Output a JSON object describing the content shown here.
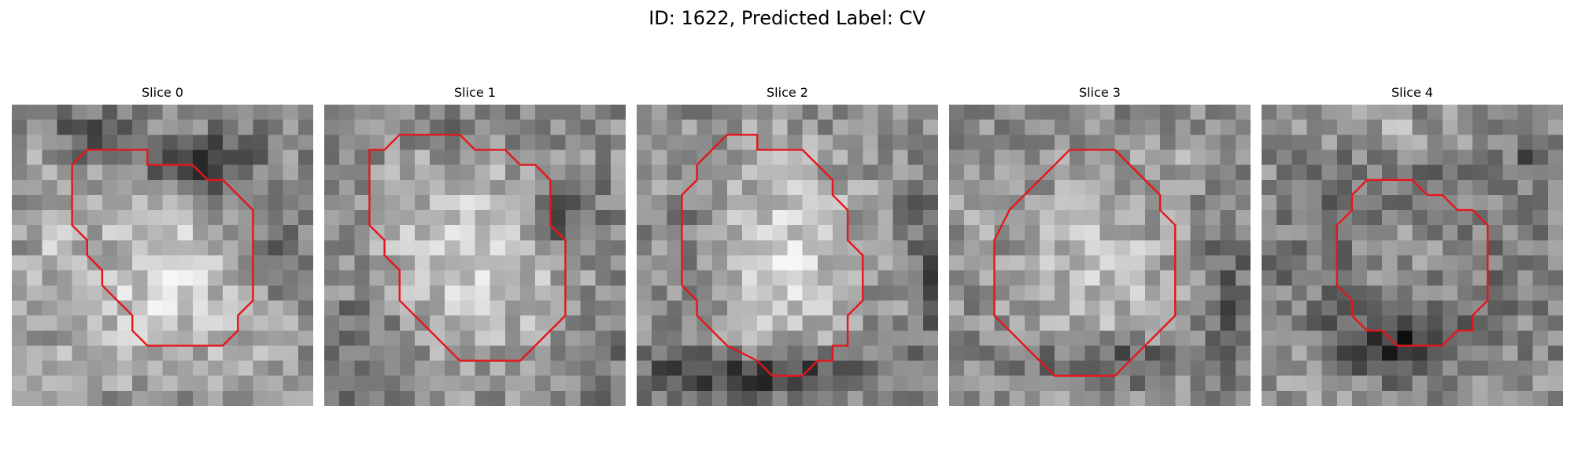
{
  "figure": {
    "title": "ID: 1622, Predicted Label: CV"
  },
  "slices": [
    {
      "label": "Slice 0",
      "seed": 11,
      "blobs": [
        [
          0.5,
          0.58,
          0.27,
          0.28,
          1.0
        ],
        [
          0.63,
          0.2,
          0.18,
          0.1,
          -1.25
        ],
        [
          0.25,
          0.1,
          0.14,
          0.08,
          -0.8
        ],
        [
          0.12,
          0.4,
          0.1,
          0.3,
          0.5
        ],
        [
          0.85,
          0.5,
          0.1,
          0.12,
          -0.7
        ],
        [
          0.3,
          0.85,
          0.25,
          0.12,
          0.3
        ],
        [
          0.85,
          0.8,
          0.12,
          0.15,
          0.4
        ]
      ],
      "contour": [
        [
          9,
          4
        ],
        [
          12,
          4
        ],
        [
          13,
          5
        ],
        [
          14,
          5
        ],
        [
          16,
          7
        ],
        [
          16,
          13
        ],
        [
          15,
          14
        ],
        [
          15,
          15
        ],
        [
          14,
          16
        ],
        [
          9,
          16
        ],
        [
          8,
          15
        ],
        [
          8,
          14
        ],
        [
          6,
          12
        ],
        [
          6,
          11
        ],
        [
          5,
          10
        ],
        [
          5,
          9
        ],
        [
          4,
          8
        ],
        [
          4,
          4
        ],
        [
          5,
          3
        ],
        [
          9,
          3
        ]
      ]
    },
    {
      "label": "Slice 1",
      "seed": 23,
      "blobs": [
        [
          0.5,
          0.5,
          0.3,
          0.32,
          1.0
        ],
        [
          0.78,
          0.35,
          0.12,
          0.12,
          -1.2
        ],
        [
          0.1,
          0.8,
          0.15,
          0.2,
          -0.5
        ],
        [
          0.45,
          0.08,
          0.25,
          0.08,
          -0.4
        ],
        [
          0.93,
          0.85,
          0.08,
          0.15,
          -0.4
        ]
      ],
      "contour": [
        [
          7,
          2
        ],
        [
          9,
          2
        ],
        [
          10,
          3
        ],
        [
          12,
          3
        ],
        [
          13,
          4
        ],
        [
          14,
          4
        ],
        [
          15,
          5
        ],
        [
          15,
          7
        ],
        [
          15,
          8
        ],
        [
          16,
          9
        ],
        [
          16,
          14
        ],
        [
          14,
          16
        ],
        [
          13,
          17
        ],
        [
          9,
          17
        ],
        [
          8,
          16
        ],
        [
          6,
          14
        ],
        [
          5,
          13
        ],
        [
          5,
          11
        ],
        [
          4,
          10
        ],
        [
          4,
          9
        ],
        [
          3,
          8
        ],
        [
          3,
          3
        ],
        [
          4,
          3
        ],
        [
          5,
          2
        ],
        [
          7,
          2
        ]
      ]
    },
    {
      "label": "Slice 2",
      "seed": 37,
      "blobs": [
        [
          0.48,
          0.5,
          0.25,
          0.33,
          1.0
        ],
        [
          0.4,
          0.9,
          0.4,
          0.08,
          -1.4
        ],
        [
          0.97,
          0.5,
          0.06,
          0.3,
          -0.9
        ],
        [
          0.05,
          0.15,
          0.12,
          0.12,
          0.5
        ],
        [
          0.2,
          0.4,
          0.1,
          0.25,
          -0.3
        ]
      ],
      "contour": [
        [
          8,
          3
        ],
        [
          9,
          3
        ],
        [
          10,
          3
        ],
        [
          11,
          3
        ],
        [
          12,
          4
        ],
        [
          13,
          5
        ],
        [
          13,
          6
        ],
        [
          14,
          7
        ],
        [
          14,
          9
        ],
        [
          15,
          10
        ],
        [
          15,
          11
        ],
        [
          15,
          13
        ],
        [
          14,
          14
        ],
        [
          14,
          16
        ],
        [
          13,
          16
        ],
        [
          13,
          17
        ],
        [
          12,
          17
        ],
        [
          11,
          18
        ],
        [
          9,
          18
        ],
        [
          8,
          17
        ],
        [
          6,
          16
        ],
        [
          5,
          15
        ],
        [
          4,
          14
        ],
        [
          4,
          13
        ],
        [
          3,
          12
        ],
        [
          3,
          10
        ],
        [
          3,
          7
        ],
        [
          3,
          6
        ],
        [
          4,
          5
        ],
        [
          4,
          4
        ],
        [
          5,
          3
        ],
        [
          6,
          2
        ],
        [
          8,
          2
        ]
      ]
    },
    {
      "label": "Slice 3",
      "seed": 53,
      "blobs": [
        [
          0.5,
          0.55,
          0.27,
          0.3,
          0.7
        ],
        [
          0.55,
          0.85,
          0.25,
          0.07,
          -1.0
        ],
        [
          0.92,
          0.6,
          0.07,
          0.25,
          -0.7
        ],
        [
          0.1,
          0.3,
          0.12,
          0.12,
          0.4
        ],
        [
          0.8,
          0.15,
          0.1,
          0.1,
          0.3
        ]
      ],
      "contour": [
        [
          8,
          3
        ],
        [
          9,
          3
        ],
        [
          11,
          3
        ],
        [
          12,
          4
        ],
        [
          14,
          6
        ],
        [
          14,
          7
        ],
        [
          15,
          8
        ],
        [
          15,
          14
        ],
        [
          13,
          16
        ],
        [
          11,
          18
        ],
        [
          7,
          18
        ],
        [
          5,
          16
        ],
        [
          3,
          14
        ],
        [
          3,
          9
        ],
        [
          4,
          7
        ],
        [
          5,
          6
        ],
        [
          6,
          5
        ],
        [
          7,
          4
        ],
        [
          8,
          3
        ]
      ]
    },
    {
      "label": "Slice 4",
      "seed": 71,
      "blobs": [
        [
          0.48,
          0.5,
          0.23,
          0.21,
          1.0
        ],
        [
          0.47,
          0.5,
          0.36,
          0.34,
          -0.9
        ],
        [
          0.45,
          0.8,
          0.2,
          0.08,
          -1.1
        ],
        [
          0.47,
          0.1,
          0.2,
          0.08,
          0.6
        ],
        [
          0.15,
          0.9,
          0.12,
          0.1,
          0.5
        ],
        [
          0.9,
          0.15,
          0.08,
          0.1,
          -0.6
        ]
      ],
      "contour": [
        [
          9,
          5
        ],
        [
          10,
          5
        ],
        [
          11,
          6
        ],
        [
          12,
          6
        ],
        [
          13,
          7
        ],
        [
          14,
          7
        ],
        [
          15,
          8
        ],
        [
          15,
          9
        ],
        [
          15,
          13
        ],
        [
          14,
          14
        ],
        [
          14,
          15
        ],
        [
          13,
          15
        ],
        [
          12,
          16
        ],
        [
          9,
          16
        ],
        [
          8,
          15
        ],
        [
          7,
          15
        ],
        [
          6,
          14
        ],
        [
          6,
          13
        ],
        [
          5,
          12
        ],
        [
          5,
          10
        ],
        [
          5,
          8
        ],
        [
          6,
          7
        ],
        [
          6,
          6
        ],
        [
          7,
          5
        ],
        [
          8,
          5
        ]
      ]
    }
  ],
  "grid": {
    "cells": 20
  },
  "colors": {
    "contour": "#e5161b"
  }
}
